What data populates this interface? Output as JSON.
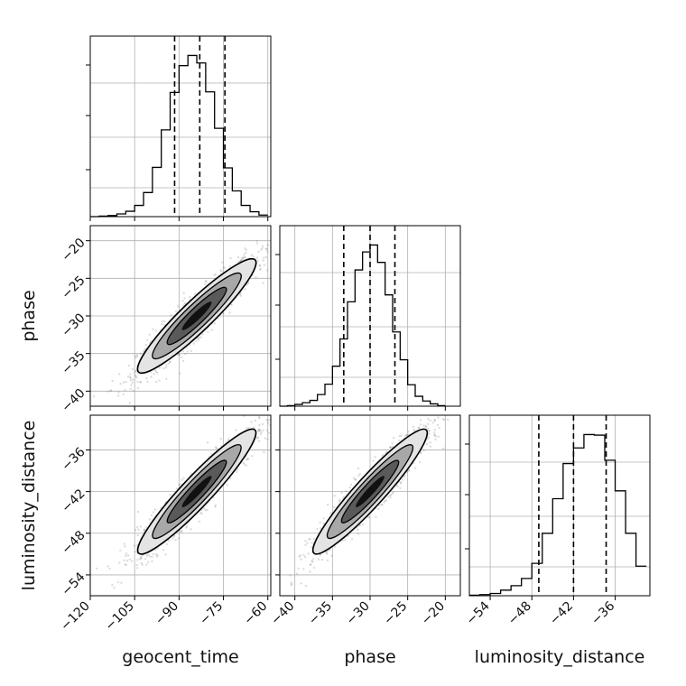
{
  "chart_data": {
    "type": "corner",
    "parameters": [
      "geocent_time",
      "phase",
      "luminosity_distance"
    ],
    "axis_labels": {
      "geocent_time": "geocent_time",
      "phase": "phase",
      "luminosity_distance": "luminosity_distance"
    },
    "ranges": {
      "geocent_time": [
        -120,
        -59
      ],
      "phase": [
        -42,
        -18
      ],
      "luminosity_distance": [
        -57,
        -31
      ]
    },
    "ticks": {
      "geocent_time": {
        "values": [
          -120,
          -105,
          -90,
          -75,
          -60
        ],
        "labels": [
          "−120",
          "−105",
          "−90",
          "−75",
          "−60"
        ]
      },
      "phase": {
        "values": [
          -40,
          -35,
          -30,
          -25,
          -20
        ],
        "labels": [
          "−40",
          "−35",
          "−30",
          "−25",
          "−20"
        ]
      },
      "luminosity_distance": {
        "values": [
          -54,
          -48,
          -42,
          -36
        ],
        "labels": [
          "−54",
          "−48",
          "−42",
          "−36"
        ]
      }
    },
    "grid": true,
    "histograms": {
      "geocent_time": {
        "edges": [
          -120,
          -117,
          -114,
          -111,
          -108,
          -105,
          -102,
          -99,
          -96,
          -93,
          -90,
          -87,
          -84,
          -81,
          -78,
          -75,
          -72,
          -69,
          -66,
          -63,
          -60
        ],
        "counts": [
          0,
          1,
          2,
          5,
          10,
          21,
          45,
          92,
          162,
          232,
          282,
          301,
          287,
          233,
          165,
          91,
          48,
          21,
          9,
          3
        ],
        "quantiles": [
          -91.5,
          -83,
          -74.5
        ]
      },
      "phase": {
        "edges": [
          -42,
          -41,
          -40,
          -39,
          -38,
          -37,
          -36,
          -35,
          -34,
          -33,
          -32,
          -31,
          -30,
          -29,
          -28,
          -27,
          -26,
          -25,
          -24,
          -23,
          -22,
          -21,
          -20
        ],
        "counts": [
          0,
          1,
          3,
          6,
          10,
          20,
          38,
          69,
          116,
          180,
          235,
          266,
          278,
          248,
          192,
          128,
          80,
          37,
          17,
          9,
          4,
          1
        ],
        "quantiles": [
          -33.5,
          -30,
          -26.7
        ]
      },
      "luminosity_distance": {
        "edges": [
          -57,
          -55.5,
          -54,
          -52.5,
          -51,
          -49.5,
          -48,
          -46.5,
          -45,
          -43.5,
          -42,
          -40.5,
          -39,
          -37.5,
          -36,
          -34.5,
          -33,
          -31.5
        ],
        "counts": [
          1,
          2,
          4,
          10,
          18,
          31,
          58,
          112,
          174,
          237,
          265,
          289,
          288,
          243,
          188,
          112,
          53
        ],
        "quantiles": [
          -47,
          -42,
          -37.3
        ]
      }
    },
    "pairs": [
      {
        "x": "geocent_time",
        "y": "phase",
        "center": [
          -84,
          -30
        ],
        "spread": [
          10,
          3.8
        ],
        "correlation": 0.93
      },
      {
        "x": "geocent_time",
        "y": "luminosity_distance",
        "center": [
          -84,
          -42
        ],
        "spread": [
          10,
          4.5
        ],
        "correlation": 0.94
      },
      {
        "x": "phase",
        "y": "luminosity_distance",
        "center": [
          -30,
          -42
        ],
        "spread": [
          3.8,
          4.5
        ],
        "correlation": 0.94
      }
    ],
    "colors": {
      "line": "#000000",
      "grid": "#b0b0b0",
      "scatter": "#808080"
    }
  }
}
